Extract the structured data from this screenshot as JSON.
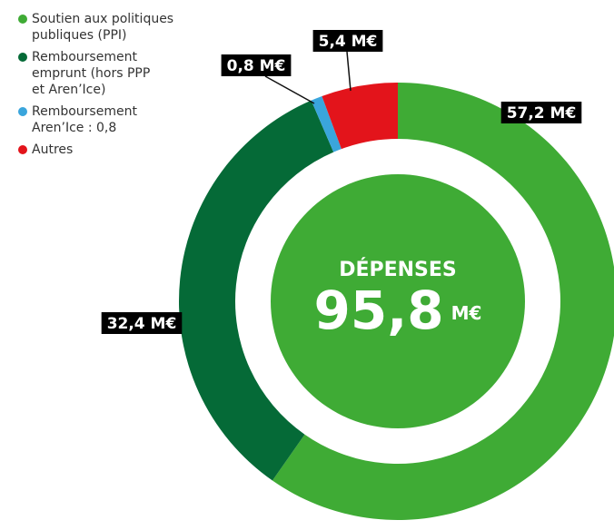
{
  "chart_data": {
    "type": "donut",
    "categories": [
      "Soutien aux politiques publiques (PPI)",
      "Remboursement emprunt (hors PPP et Aren’Ice)",
      "Remboursement Aren’Ice : 0,8",
      "Autres"
    ],
    "values": [
      57.2,
      32.4,
      0.8,
      5.4
    ],
    "value_labels": [
      "57,2 M€",
      "32,4 M€",
      "0,8 M€",
      "5,4 M€"
    ],
    "colors": [
      "#3fab35",
      "#056a37",
      "#3aa5dc",
      "#e3141b"
    ],
    "center_title": "DÉPENSES",
    "center_value": "95,8",
    "center_unit": "M€"
  }
}
